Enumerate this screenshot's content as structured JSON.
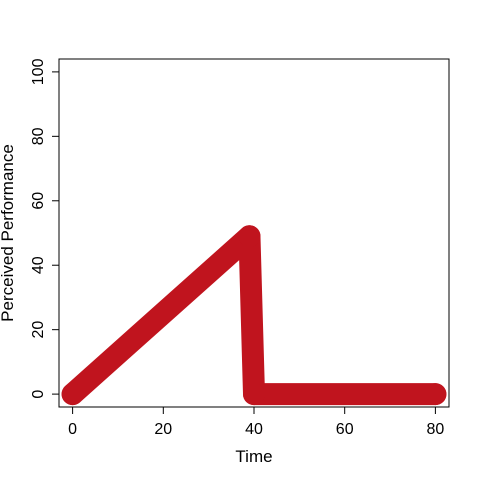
{
  "chart_data": {
    "type": "line",
    "title": "",
    "xlabel": "Time",
    "ylabel": "Perceived Performance",
    "xlim": [
      -3,
      83
    ],
    "ylim": [
      -4,
      104
    ],
    "x_ticks": [
      0,
      20,
      40,
      60,
      80
    ],
    "x_tick_labels": [
      "0",
      "20",
      "40",
      "60",
      "80"
    ],
    "y_ticks": [
      0,
      20,
      40,
      60,
      80,
      100
    ],
    "y_tick_labels": [
      "0",
      "20",
      "40",
      "60",
      "80",
      "100"
    ],
    "grid": false,
    "legend": "none",
    "series": [
      {
        "color": "#C0141E",
        "points": [
          {
            "x": 0,
            "y": 0
          },
          {
            "x": 39,
            "y": 49
          },
          {
            "x": 40,
            "y": 0
          },
          {
            "x": 80,
            "y": 0
          }
        ]
      }
    ]
  }
}
